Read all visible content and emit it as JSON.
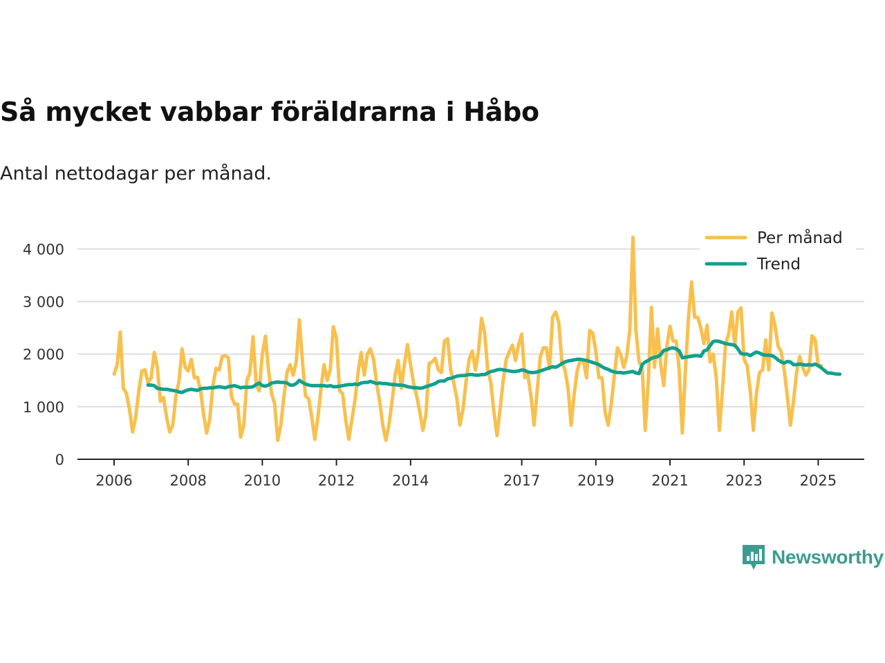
{
  "header": {
    "title": "Så mycket vabbar föräldrarna i Håbo",
    "subtitle": "Antal nettodagar per månad."
  },
  "brand": {
    "name": "Newsworthy",
    "icon": "newsworthy-logo-icon",
    "color": "#3d9c8f"
  },
  "colors": {
    "monthly": "#f7c04f",
    "trend": "#13a08e",
    "grid": "#dddddd",
    "axis": "#222222"
  },
  "chart_data": {
    "type": "line",
    "title": "Så mycket vabbar föräldrarna i Håbo",
    "subtitle": "Antal nettodagar per månad.",
    "xlabel": "",
    "ylabel": "",
    "ylim": [
      0,
      4400
    ],
    "xlim": [
      2006,
      2026.3
    ],
    "yticks": [
      0,
      1000,
      2000,
      3000,
      4000
    ],
    "ytick_labels": [
      "0",
      "1 000",
      "2 000",
      "3 000",
      "4 000"
    ],
    "xticks": [
      2006,
      2008,
      2010,
      2012,
      2014,
      2017,
      2019,
      2021,
      2023,
      2025
    ],
    "xtick_labels": [
      "2006",
      "2008",
      "2010",
      "2012",
      "2014",
      "2017",
      "2019",
      "2021",
      "2023",
      "2025"
    ],
    "grid": "horizontal",
    "legend_position": "top-right",
    "series": [
      {
        "name": "Per månad",
        "start": 2006.0,
        "step": 0.08333,
        "values": [
          1620,
          1800,
          2420,
          1350,
          1250,
          950,
          520,
          800,
          1300,
          1680,
          1700,
          1450,
          1550,
          2030,
          1750,
          1100,
          1180,
          800,
          520,
          650,
          1200,
          1480,
          2100,
          1750,
          1680,
          1900,
          1550,
          1560,
          1300,
          850,
          500,
          780,
          1400,
          1730,
          1700,
          1950,
          1970,
          1930,
          1200,
          1050,
          1050,
          420,
          650,
          1500,
          1650,
          2330,
          1420,
          1300,
          2000,
          2340,
          1700,
          1250,
          1050,
          360,
          650,
          1200,
          1650,
          1800,
          1600,
          1860,
          2650,
          1850,
          1200,
          1150,
          800,
          380,
          800,
          1350,
          1800,
          1500,
          1700,
          2520,
          2300,
          1300,
          1250,
          750,
          380,
          750,
          1120,
          1650,
          2030,
          1600,
          2000,
          2100,
          1900,
          1450,
          1100,
          650,
          360,
          650,
          1100,
          1600,
          1880,
          1350,
          1800,
          2180,
          1800,
          1450,
          1200,
          900,
          550,
          850,
          1820,
          1850,
          1920,
          1700,
          1650,
          2250,
          2290,
          1700,
          1450,
          1150,
          650,
          950,
          1500,
          1900,
          2060,
          1700,
          2050,
          2680,
          2400,
          1700,
          1450,
          900,
          450,
          950,
          1500,
          1900,
          2050,
          2170,
          1880,
          2180,
          2380,
          1550,
          1600,
          1200,
          650,
          1300,
          1950,
          2120,
          2120,
          1720,
          2700,
          2800,
          2600,
          1850,
          1700,
          1350,
          650,
          1250,
          1700,
          1880,
          1880,
          1550,
          2450,
          2400,
          2050,
          1550,
          1550,
          900,
          650,
          1050,
          1600,
          2120,
          2000,
          1750,
          1950,
          2450,
          4220,
          2450,
          1850,
          1750,
          550,
          1500,
          2890,
          1750,
          2480,
          1800,
          1400,
          2150,
          2530,
          2250,
          2250,
          1700,
          500,
          1700,
          2700,
          3370,
          2700,
          2700,
          2500,
          2200,
          2550,
          1850,
          2000,
          1550,
          550,
          1300,
          2200,
          2380,
          2800,
          2150,
          2800,
          2880,
          1900,
          1780,
          1300,
          550,
          1250,
          1650,
          1700,
          2270,
          1700,
          2780,
          2550,
          2150,
          2050,
          1700,
          1200,
          650,
          1100,
          1650,
          1950,
          1750,
          1600,
          1700,
          2350,
          2280,
          1780,
          1780
        ]
      },
      {
        "name": "Trend",
        "start": 2006.9167,
        "step": 0.08333,
        "values": [
          1410,
          1410,
          1400,
          1350,
          1340,
          1330,
          1330,
          1320,
          1310,
          1300,
          1280,
          1270,
          1300,
          1320,
          1330,
          1320,
          1310,
          1340,
          1350,
          1350,
          1360,
          1360,
          1370,
          1380,
          1370,
          1360,
          1380,
          1390,
          1400,
          1380,
          1360,
          1370,
          1370,
          1370,
          1380,
          1420,
          1450,
          1400,
          1390,
          1410,
          1450,
          1460,
          1470,
          1460,
          1460,
          1450,
          1410,
          1410,
          1440,
          1500,
          1460,
          1430,
          1410,
          1400,
          1400,
          1400,
          1400,
          1400,
          1390,
          1400,
          1380,
          1380,
          1390,
          1400,
          1410,
          1420,
          1420,
          1430,
          1420,
          1450,
          1460,
          1460,
          1480,
          1460,
          1440,
          1450,
          1440,
          1440,
          1430,
          1420,
          1420,
          1410,
          1410,
          1400,
          1380,
          1370,
          1360,
          1360,
          1350,
          1360,
          1380,
          1400,
          1420,
          1440,
          1480,
          1490,
          1490,
          1530,
          1540,
          1560,
          1580,
          1590,
          1590,
          1600,
          1610,
          1610,
          1600,
          1600,
          1610,
          1610,
          1640,
          1670,
          1680,
          1700,
          1710,
          1700,
          1690,
          1680,
          1670,
          1670,
          1680,
          1700,
          1690,
          1660,
          1650,
          1650,
          1660,
          1680,
          1700,
          1720,
          1740,
          1760,
          1750,
          1780,
          1820,
          1850,
          1870,
          1880,
          1890,
          1900,
          1900,
          1890,
          1880,
          1860,
          1840,
          1820,
          1800,
          1760,
          1730,
          1710,
          1680,
          1660,
          1650,
          1650,
          1640,
          1650,
          1660,
          1670,
          1640,
          1630,
          1800,
          1850,
          1880,
          1920,
          1940,
          1950,
          1990,
          2070,
          2080,
          2110,
          2120,
          2100,
          2060,
          1930,
          1940,
          1950,
          1960,
          1970,
          1970,
          1960,
          2060,
          2080,
          2160,
          2240,
          2250,
          2240,
          2220,
          2200,
          2190,
          2180,
          2170,
          2100,
          2010,
          2000,
          2000,
          1970,
          2010,
          2040,
          2020,
          1990,
          1980,
          1980,
          1970,
          1940,
          1890,
          1850,
          1830,
          1860,
          1850,
          1800,
          1800,
          1810,
          1800,
          1790,
          1800,
          1790,
          1810,
          1780,
          1740,
          1690,
          1640,
          1640,
          1630,
          1620,
          1620
        ]
      }
    ]
  }
}
